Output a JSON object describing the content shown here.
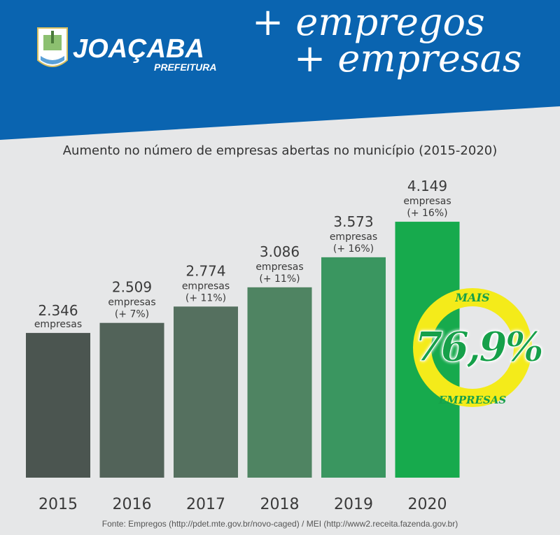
{
  "header": {
    "brand": "JOAÇABA",
    "brand_sub": "PREFEITURA",
    "headline_1": "+ empregos",
    "headline_2": "+ empresas",
    "logo": "joacaba-coat-of-arms",
    "background_color": "#0a64b0"
  },
  "chart_data": {
    "type": "bar",
    "title": "Aumento no número de empresas abertas no município (2015-2020)",
    "categories": [
      "2015",
      "2016",
      "2017",
      "2018",
      "2019",
      "2020"
    ],
    "values": [
      2346,
      2509,
      2774,
      3086,
      3573,
      4149
    ],
    "value_labels": [
      "2.346",
      "2.509",
      "2.774",
      "3.086",
      "3.573",
      "4.149"
    ],
    "unit_label": "empresas",
    "growth_labels": [
      "",
      "(+ 7%)",
      "(+ 11%)",
      "(+ 11%)",
      "(+ 16%)",
      "(+ 16%)"
    ],
    "colors": [
      "#4b5550",
      "#526359",
      "#55705f",
      "#4f8462",
      "#3a9660",
      "#17aa4d"
    ],
    "grid": false,
    "legend": "none"
  },
  "badge": {
    "top": "MAIS",
    "value": "76,9%",
    "bottom": "EMPRESAS",
    "ring_color": "#f4eb1a",
    "text_color": "#16a04a"
  },
  "source": "Fonte: Empregos (http://pdet.mte.gov.br/novo-caged) / MEI (http://www2.receita.fazenda.gov.br)"
}
